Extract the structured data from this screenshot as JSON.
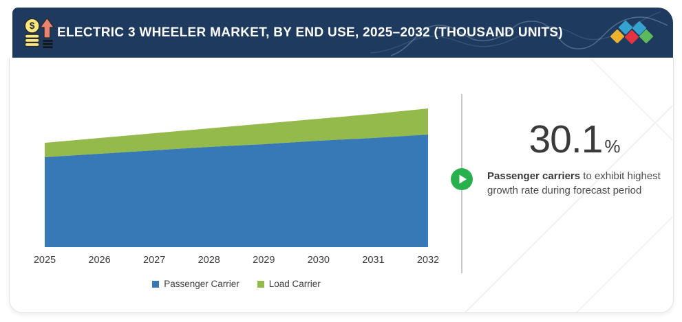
{
  "header": {
    "title": "ELECTRIC 3 WHEELER MARKET, BY END USE, 2025–2032 (THOUSAND UNITS)",
    "bg_color": "#1e3a5f",
    "diamond_colors": [
      "#ecb22e",
      "#35a3d0",
      "#e5333f",
      "#35a3d0",
      "#5cba5c"
    ]
  },
  "chart_data": {
    "type": "area",
    "stacked": true,
    "title": "ELECTRIC 3 WHEELER MARKET, BY END USE, 2025–2032 (THOUSAND UNITS)",
    "unit": "Thousand Units",
    "categories": [
      "2025",
      "2026",
      "2027",
      "2028",
      "2029",
      "2030",
      "2031",
      "2032"
    ],
    "series": [
      {
        "name": "Passenger Carrier",
        "color": "#3679b6",
        "values": [
          65.5,
          68,
          70.5,
          73,
          75,
          77.5,
          79.5,
          82
        ]
      },
      {
        "name": "Load Carrier",
        "color": "#93ba4b",
        "values": [
          10.5,
          11.5,
          12.5,
          13.5,
          15,
          16,
          17.5,
          19
        ]
      }
    ],
    "xlabel": "",
    "ylabel": "",
    "y_axis_visible": false,
    "grid": false,
    "legend_position": "bottom"
  },
  "insight": {
    "value": "30.1",
    "unit": "%",
    "text_bold": "Passenger carriers",
    "text_rest": " to exhibit highest growth rate during forecast period",
    "play_color": "#29b04e"
  }
}
